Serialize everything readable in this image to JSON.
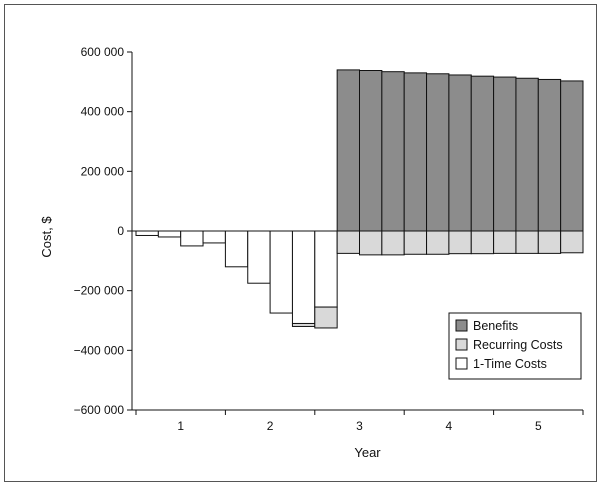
{
  "chart_data": {
    "type": "bar",
    "stacked": true,
    "xlabel": "Year",
    "ylabel": "Cost, $",
    "ylim": [
      -600000,
      600000
    ],
    "yticks": [
      600000,
      400000,
      200000,
      0,
      -200000,
      -400000,
      -600000
    ],
    "ytick_labels": [
      "600 000",
      "400 000",
      "200 000",
      "0",
      "−200 000",
      "−400 000",
      "−600 000"
    ],
    "xticks": [
      {
        "label": "1",
        "value": 1
      },
      {
        "label": "2",
        "value": 2
      },
      {
        "label": "3",
        "value": 3
      },
      {
        "label": "4",
        "value": 4
      },
      {
        "label": "5",
        "value": 5
      }
    ],
    "periods_per_year": 4,
    "series": [
      {
        "name": "1-Time Costs",
        "color": "#ffffff",
        "values": [
          -15000,
          -20000,
          -50000,
          -40000,
          -120000,
          -175000,
          -275000,
          -310000,
          -255000,
          0,
          0,
          0,
          0,
          0,
          0,
          0,
          0,
          0,
          0,
          0
        ]
      },
      {
        "name": "Recurring Costs",
        "color": "#d9d9d9",
        "values": [
          0,
          0,
          0,
          0,
          0,
          0,
          0,
          -10000,
          -70000,
          -75000,
          -80000,
          -80000,
          -78000,
          -78000,
          -76000,
          -76000,
          -75000,
          -75000,
          -75000,
          -73000
        ]
      },
      {
        "name": "Benefits",
        "color": "#8c8c8c",
        "values": [
          0,
          0,
          0,
          0,
          0,
          0,
          0,
          0,
          0,
          540000,
          538000,
          534000,
          530000,
          527000,
          523000,
          519000,
          516000,
          512000,
          508000,
          503000
        ]
      }
    ],
    "legend": {
      "position": "bottom-right",
      "entries": [
        {
          "label": "Benefits",
          "color": "#8c8c8c"
        },
        {
          "label": "Recurring Costs",
          "color": "#d9d9d9"
        },
        {
          "label": "1-Time Costs",
          "color": "#ffffff"
        }
      ]
    }
  }
}
